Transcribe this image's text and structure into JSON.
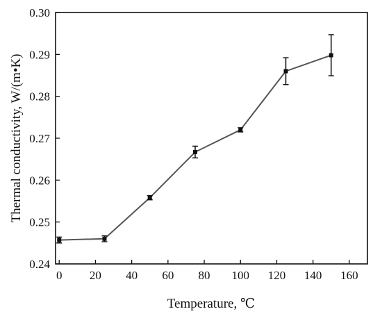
{
  "chart_data": {
    "type": "line",
    "xlabel": "Temperature, ℃",
    "ylabel": "Thermal conductivity, W/(m•K)",
    "xlim": [
      -2,
      170
    ],
    "ylim": [
      0.24,
      0.3
    ],
    "xticks": [
      0,
      20,
      40,
      60,
      80,
      100,
      120,
      140,
      160
    ],
    "yticks": [
      0.24,
      0.25,
      0.26,
      0.27,
      0.28,
      0.29,
      0.3
    ],
    "xtick_labels": [
      "0",
      "20",
      "40",
      "60",
      "80",
      "100",
      "120",
      "140",
      "160"
    ],
    "ytick_labels": [
      "0.24",
      "0.25",
      "0.26",
      "0.27",
      "0.28",
      "0.29",
      "0.30"
    ],
    "grid": false,
    "series": [
      {
        "x": [
          0,
          25,
          50,
          75,
          100,
          125,
          150
        ],
        "y": [
          0.2457,
          0.246,
          0.2558,
          0.2667,
          0.272,
          0.286,
          0.2898
        ],
        "error": [
          0.0007,
          0.0007,
          0.0005,
          0.0014,
          0.0005,
          0.0032,
          0.0049
        ],
        "line_color": "#555555",
        "marker_color": "#111111",
        "marker": "square"
      }
    ]
  }
}
